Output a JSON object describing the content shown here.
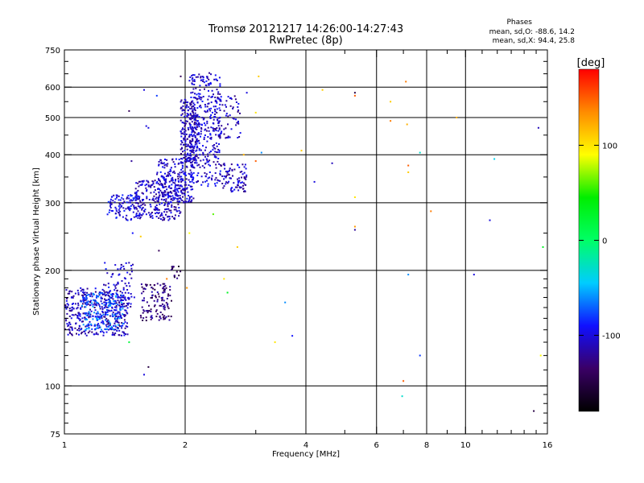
{
  "chart_data": {
    "type": "scatter",
    "title": "Tromsø 20121217 14:26:00-14:27:43",
    "subtitle": "RwPretec (8p)",
    "xlabel": "Frequency [MHz]",
    "ylabel": "Stationary phase Virtual Height [km]",
    "x_scale": "log",
    "y_scale": "log",
    "xlim": [
      1,
      16
    ],
    "ylim": [
      75,
      750
    ],
    "x_ticks": [
      1,
      2,
      4,
      6,
      8,
      10,
      16
    ],
    "x_gridlines": [
      2,
      4,
      6,
      8,
      10
    ],
    "y_ticks": [
      75,
      100,
      200,
      300,
      400,
      500,
      600,
      750
    ],
    "y_gridlines": [
      100,
      200,
      300,
      400,
      500,
      600
    ],
    "grid": true,
    "phase_stats": {
      "heading": "Phases",
      "line1": "mean, sd,O: -88.6, 14.2",
      "line2": "mean, sd,X:  94.4, 25.8"
    },
    "colorbar": {
      "label": "[deg]",
      "range": [
        -180,
        180
      ],
      "ticks": [
        {
          "value": 100,
          "label": "100"
        },
        {
          "value": 0,
          "label": "0"
        },
        {
          "value": -100,
          "label": "-100"
        }
      ],
      "stops": [
        "#000000",
        "#3a0066",
        "#1010ff",
        "#00ccff",
        "#00ff66",
        "#00ee00",
        "#ffff00",
        "#ff8c00",
        "#ff0000"
      ]
    },
    "clusters": [
      {
        "x": [
          1.0,
          1.45
        ],
        "y": [
          135,
          180
        ],
        "phase": -110,
        "density": 420
      },
      {
        "x": [
          1.1,
          1.4
        ],
        "y": [
          140,
          175
        ],
        "phase": -70,
        "density": 160
      },
      {
        "x": [
          1.25,
          1.5
        ],
        "y": [
          160,
          210
        ],
        "phase": -105,
        "density": 70
      },
      {
        "x": [
          1.55,
          1.85
        ],
        "y": [
          148,
          185
        ],
        "phase": -130,
        "density": 120
      },
      {
        "x": [
          1.85,
          1.95
        ],
        "y": [
          190,
          205
        ],
        "phase": -140,
        "density": 14
      },
      {
        "x": [
          1.28,
          1.55
        ],
        "y": [
          270,
          315
        ],
        "phase": -100,
        "density": 120
      },
      {
        "x": [
          1.5,
          1.95
        ],
        "y": [
          270,
          345
        ],
        "phase": -110,
        "density": 220
      },
      {
        "x": [
          1.7,
          2.1
        ],
        "y": [
          300,
          390
        ],
        "phase": -105,
        "density": 240
      },
      {
        "x": [
          1.95,
          2.15
        ],
        "y": [
          380,
          560
        ],
        "phase": -110,
        "density": 200
      },
      {
        "x": [
          2.05,
          2.45
        ],
        "y": [
          330,
          655
        ],
        "phase": -105,
        "density": 360
      },
      {
        "x": [
          2.35,
          2.75
        ],
        "y": [
          440,
          570
        ],
        "phase": -110,
        "density": 80
      },
      {
        "x": [
          2.45,
          2.85
        ],
        "y": [
          320,
          380
        ],
        "phase": -110,
        "density": 90
      }
    ],
    "points": [
      {
        "x": 1.45,
        "y": 520,
        "phase": -140
      },
      {
        "x": 1.6,
        "y": 475,
        "phase": -100
      },
      {
        "x": 1.62,
        "y": 470,
        "phase": -100
      },
      {
        "x": 1.58,
        "y": 590,
        "phase": -100
      },
      {
        "x": 1.7,
        "y": 570,
        "phase": -80
      },
      {
        "x": 1.47,
        "y": 385,
        "phase": -120
      },
      {
        "x": 1.48,
        "y": 250,
        "phase": -90
      },
      {
        "x": 1.55,
        "y": 245,
        "phase": 110
      },
      {
        "x": 1.72,
        "y": 225,
        "phase": -140
      },
      {
        "x": 1.45,
        "y": 130,
        "phase": 20
      },
      {
        "x": 1.62,
        "y": 112,
        "phase": -150
      },
      {
        "x": 1.58,
        "y": 107,
        "phase": -100
      },
      {
        "x": 1.8,
        "y": 190,
        "phase": 140
      },
      {
        "x": 1.95,
        "y": 640,
        "phase": -140
      },
      {
        "x": 2.02,
        "y": 180,
        "phase": 130
      },
      {
        "x": 2.05,
        "y": 250,
        "phase": 90
      },
      {
        "x": 2.35,
        "y": 280,
        "phase": 60
      },
      {
        "x": 2.5,
        "y": 190,
        "phase": 100
      },
      {
        "x": 2.55,
        "y": 175,
        "phase": 30
      },
      {
        "x": 2.7,
        "y": 230,
        "phase": 110
      },
      {
        "x": 2.8,
        "y": 400,
        "phase": 120
      },
      {
        "x": 2.85,
        "y": 580,
        "phase": -100
      },
      {
        "x": 3.0,
        "y": 385,
        "phase": 150
      },
      {
        "x": 3.05,
        "y": 640,
        "phase": 110
      },
      {
        "x": 3.0,
        "y": 515,
        "phase": 100
      },
      {
        "x": 3.1,
        "y": 405,
        "phase": -60
      },
      {
        "x": 3.35,
        "y": 130,
        "phase": 100
      },
      {
        "x": 3.55,
        "y": 165,
        "phase": -60
      },
      {
        "x": 3.7,
        "y": 135,
        "phase": -90
      },
      {
        "x": 3.9,
        "y": 410,
        "phase": 110
      },
      {
        "x": 4.2,
        "y": 340,
        "phase": -100
      },
      {
        "x": 4.4,
        "y": 590,
        "phase": 110
      },
      {
        "x": 4.65,
        "y": 380,
        "phase": -110
      },
      {
        "x": 5.3,
        "y": 570,
        "phase": 150
      },
      {
        "x": 5.3,
        "y": 580,
        "phase": -150
      },
      {
        "x": 5.3,
        "y": 310,
        "phase": 100
      },
      {
        "x": 5.3,
        "y": 260,
        "phase": 130
      },
      {
        "x": 5.3,
        "y": 255,
        "phase": -120
      },
      {
        "x": 6.5,
        "y": 550,
        "phase": 110
      },
      {
        "x": 6.5,
        "y": 490,
        "phase": 140
      },
      {
        "x": 7.1,
        "y": 620,
        "phase": 140
      },
      {
        "x": 7.15,
        "y": 480,
        "phase": 120
      },
      {
        "x": 7.2,
        "y": 375,
        "phase": 150
      },
      {
        "x": 7.2,
        "y": 360,
        "phase": 110
      },
      {
        "x": 7.2,
        "y": 195,
        "phase": -60
      },
      {
        "x": 7.0,
        "y": 103,
        "phase": 150
      },
      {
        "x": 6.95,
        "y": 94,
        "phase": -30
      },
      {
        "x": 7.7,
        "y": 405,
        "phase": -30
      },
      {
        "x": 7.7,
        "y": 120,
        "phase": -80
      },
      {
        "x": 8.2,
        "y": 285,
        "phase": 140
      },
      {
        "x": 9.5,
        "y": 500,
        "phase": 120
      },
      {
        "x": 10.5,
        "y": 195,
        "phase": -100
      },
      {
        "x": 11.5,
        "y": 270,
        "phase": -100
      },
      {
        "x": 11.8,
        "y": 390,
        "phase": -40
      },
      {
        "x": 15.2,
        "y": 470,
        "phase": -110
      },
      {
        "x": 15.6,
        "y": 230,
        "phase": 30
      },
      {
        "x": 15.4,
        "y": 120,
        "phase": 90
      },
      {
        "x": 14.8,
        "y": 86,
        "phase": -150
      }
    ]
  }
}
